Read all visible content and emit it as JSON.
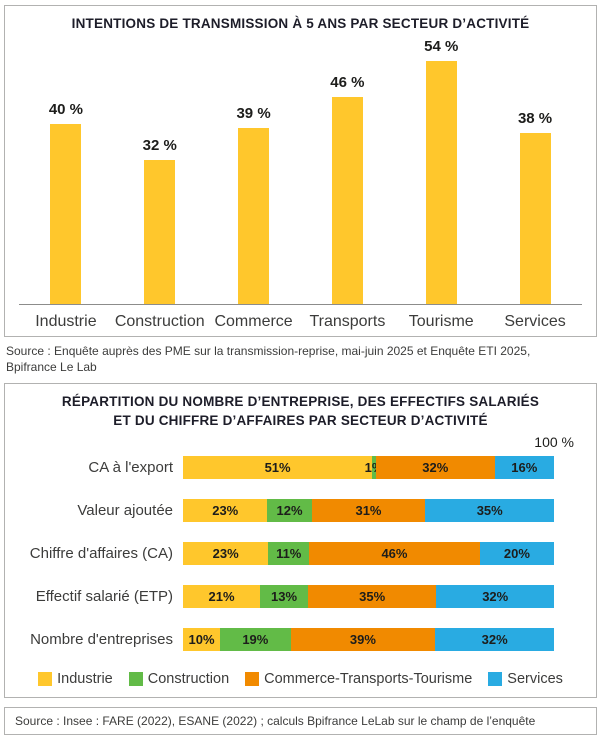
{
  "chart_data": [
    {
      "type": "bar",
      "title": "INTENTIONS DE TRANSMISSION À 5 ANS PAR SECTEUR D’ACTIVITÉ",
      "categories": [
        "Industrie",
        "Construction",
        "Commerce",
        "Transports",
        "Tourisme",
        "Services"
      ],
      "values": [
        40,
        32,
        39,
        46,
        54,
        38
      ],
      "value_labels": [
        "40 %",
        "32 %",
        "39 %",
        "46 %",
        "54 %",
        "38 %"
      ],
      "bar_color": "#FFC72C",
      "ylim": [
        0,
        54
      ],
      "grid": false,
      "legend_position": "none",
      "source": "Source : Enquête auprès des PME sur la transmission-reprise, mai-juin 2025 et Enquête ETI 2025, Bpifrance Le Lab"
    },
    {
      "type": "bar",
      "subtype": "horizontal-stacked",
      "title_line1": "RÉPARTITION DU NOMBRE D’ENTREPRISE, DES EFFECTIFS SALARIÉS",
      "title_line2": "ET DU CHIFFRE D’AFFAIRES PAR SECTEUR D’ACTIVITÉ",
      "axis_max_label": "100 %",
      "categories": [
        "CA à l'export",
        "Valeur ajoutée",
        "Chiffre d'affaires (CA)",
        "Effectif salarié (ETP)",
        "Nombre d'entreprises"
      ],
      "series": [
        {
          "name": "Industrie",
          "color": "#FFC72C",
          "values": [
            51,
            23,
            23,
            21,
            10
          ],
          "labels": [
            "51%",
            "23%",
            "23%",
            "21%",
            "10%"
          ]
        },
        {
          "name": "Construction",
          "color": "#62BB47",
          "values": [
            1,
            12,
            11,
            13,
            19
          ],
          "labels": [
            "1%",
            "12%",
            "11%",
            "13%",
            "19%"
          ]
        },
        {
          "name": "Commerce-Transports-Tourisme",
          "color": "#F18A00",
          "values": [
            32,
            31,
            46,
            35,
            39
          ],
          "labels": [
            "32%",
            "31%",
            "46%",
            "35%",
            "39%"
          ]
        },
        {
          "name": "Services",
          "color": "#29ABE2",
          "values": [
            16,
            35,
            20,
            32,
            32
          ],
          "labels": [
            "16%",
            "35%",
            "20%",
            "32%",
            "32%"
          ]
        }
      ],
      "legend_position": "bottom",
      "source": "Source : Insee : FARE (2022), ESANE (2022) ; calculs Bpifrance LeLab sur le champ de l’enquête"
    }
  ]
}
